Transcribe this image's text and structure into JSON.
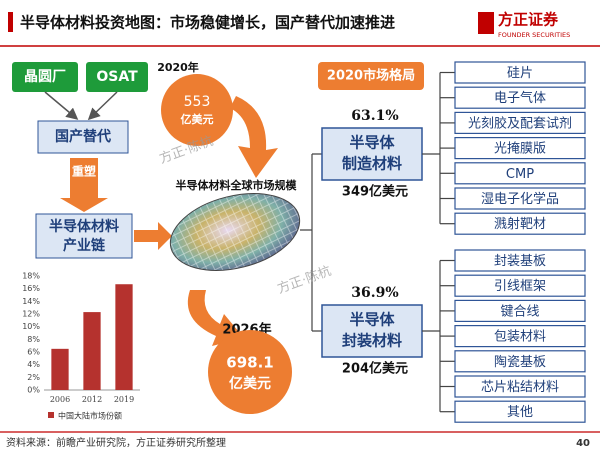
{
  "header": {
    "title": "半导体材料投资地图：市场稳健增长，国产替代加速推进",
    "logo_name": "方正证券",
    "logo_en": "FOUNDER SECURITIES"
  },
  "chain": {
    "sources": [
      "晶圆厂",
      "OSAT"
    ],
    "substitution": "国产替代",
    "reshape": "重塑",
    "industry_chain_lines": [
      "半导体材料",
      "产业链"
    ]
  },
  "global_market": {
    "title": "半导体材料全球市场规模",
    "points": [
      {
        "year": "2020年",
        "value": "553",
        "unit": "亿美元"
      },
      {
        "year": "2026年",
        "value": "698.1",
        "unit": "亿美元"
      }
    ]
  },
  "structure": {
    "title": "2020市场格局",
    "segments": [
      {
        "share": "63.1%",
        "name_lines": [
          "半导体",
          "制造材料"
        ],
        "size": "349亿美元",
        "items": [
          "硅片",
          "电子气体",
          "光刻胶及配套试剂",
          "光掩膜版",
          "CMP",
          "湿电子化学品",
          "溅射靶材"
        ]
      },
      {
        "share": "36.9%",
        "name_lines": [
          "半导体",
          "封装材料"
        ],
        "size": "204亿美元",
        "items": [
          "封装基板",
          "引线框架",
          "键合线",
          "包装材料",
          "陶瓷基板",
          "芯片粘结材料",
          "其他"
        ]
      }
    ]
  },
  "watermarks": [
    "方正·陈杭",
    "方正·陈杭"
  ],
  "chart_data": {
    "type": "bar",
    "categories": [
      "2006",
      "2012",
      "2019"
    ],
    "series": [
      {
        "name": "中国大陆市场份额",
        "color": "#b5322e",
        "values": [
          6.5,
          12.3,
          16.7
        ]
      }
    ],
    "ylim": [
      0,
      18
    ],
    "yticks": [
      {
        "value": 0,
        "label": "0%"
      },
      {
        "value": 2,
        "label": "2%"
      },
      {
        "value": 4,
        "label": "4%"
      },
      {
        "value": 6,
        "label": "6%"
      },
      {
        "value": 8,
        "label": "8%"
      },
      {
        "value": 10,
        "label": "10%"
      },
      {
        "value": 12,
        "label": "12%"
      },
      {
        "value": 14,
        "label": "14%"
      },
      {
        "value": 16,
        "label": "16%"
      },
      {
        "value": 18,
        "label": "18%"
      }
    ],
    "grid": false
  },
  "footer": {
    "source": "资料来源：前瞻产业研究院，方正证券研究所整理",
    "page": "40"
  }
}
